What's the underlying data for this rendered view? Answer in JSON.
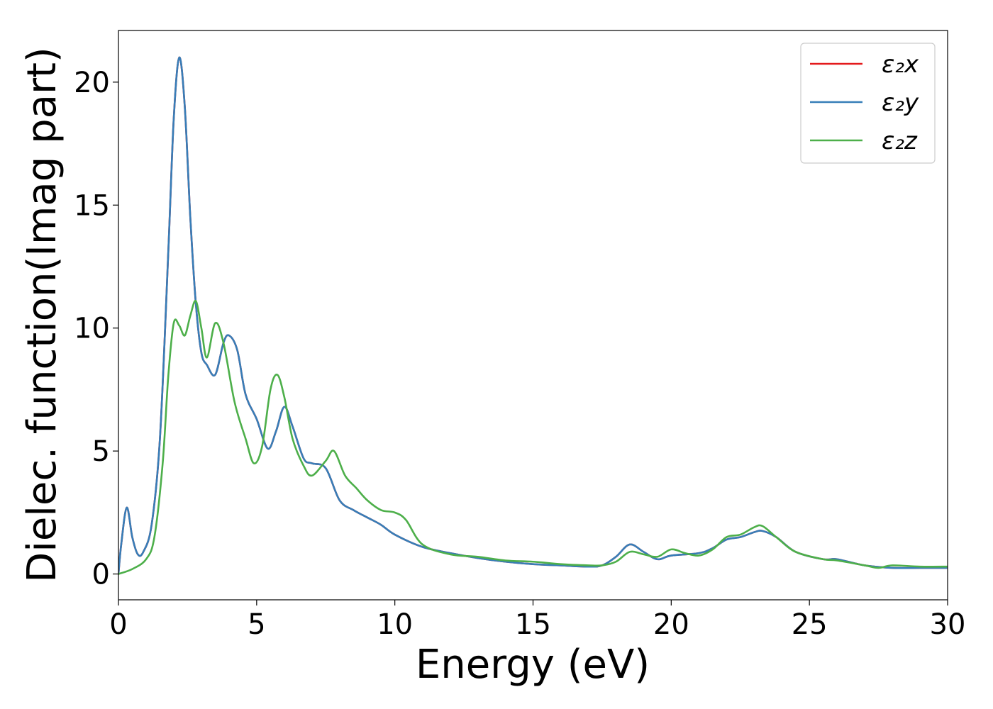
{
  "chart_data": {
    "type": "line",
    "title": "",
    "xlabel": "Energy (eV)",
    "ylabel": "Dielec. function(Imag part)",
    "xlim": [
      0,
      30
    ],
    "ylim": [
      -1.05,
      22.1
    ],
    "xticks": [
      0,
      5,
      10,
      15,
      20,
      25,
      30
    ],
    "yticks": [
      0,
      5,
      10,
      15,
      20
    ],
    "grid": false,
    "legend_position": "top-right",
    "series": [
      {
        "name": "ε₂x",
        "color": "#e41a1c",
        "x": [
          0,
          0.1,
          0.3,
          0.5,
          0.7,
          0.9,
          1.2,
          1.5,
          1.8,
          2.0,
          2.2,
          2.4,
          2.6,
          2.8,
          3.0,
          3.2,
          3.5,
          3.8,
          4.0,
          4.3,
          4.6,
          5.0,
          5.4,
          5.7,
          6.0,
          6.3,
          6.7,
          7.0,
          7.5,
          8.0,
          8.5,
          9.0,
          9.5,
          10.0,
          11.0,
          12.0,
          13.0,
          14.0,
          15.0,
          16.0,
          17.0,
          17.5,
          18.0,
          18.5,
          19.0,
          19.5,
          20.0,
          21.0,
          21.5,
          22.0,
          22.5,
          23.0,
          23.3,
          23.8,
          24.5,
          25.5,
          26.0,
          27.0,
          28.0,
          29.0,
          30.0
        ],
        "values": [
          0,
          1.2,
          2.7,
          1.5,
          0.8,
          0.9,
          2.0,
          5.5,
          13.0,
          18.5,
          21.0,
          19.0,
          14.5,
          11.0,
          9.0,
          8.5,
          8.1,
          9.4,
          9.7,
          9.1,
          7.3,
          6.3,
          5.1,
          5.8,
          6.8,
          6.0,
          4.7,
          4.5,
          4.3,
          3.0,
          2.6,
          2.3,
          2.0,
          1.6,
          1.1,
          0.85,
          0.65,
          0.5,
          0.4,
          0.35,
          0.3,
          0.35,
          0.7,
          1.2,
          0.9,
          0.6,
          0.75,
          0.85,
          1.05,
          1.4,
          1.5,
          1.7,
          1.75,
          1.5,
          0.9,
          0.6,
          0.6,
          0.35,
          0.25,
          0.25,
          0.25
        ]
      },
      {
        "name": "ε₂y",
        "color": "#377eb8",
        "x": [
          0,
          0.1,
          0.3,
          0.5,
          0.7,
          0.9,
          1.2,
          1.5,
          1.8,
          2.0,
          2.2,
          2.4,
          2.6,
          2.8,
          3.0,
          3.2,
          3.5,
          3.8,
          4.0,
          4.3,
          4.6,
          5.0,
          5.4,
          5.7,
          6.0,
          6.3,
          6.7,
          7.0,
          7.5,
          8.0,
          8.5,
          9.0,
          9.5,
          10.0,
          11.0,
          12.0,
          13.0,
          14.0,
          15.0,
          16.0,
          17.0,
          17.5,
          18.0,
          18.5,
          19.0,
          19.5,
          20.0,
          21.0,
          21.5,
          22.0,
          22.5,
          23.0,
          23.3,
          23.8,
          24.5,
          25.5,
          26.0,
          27.0,
          28.0,
          29.0,
          30.0
        ],
        "values": [
          0,
          1.2,
          2.7,
          1.5,
          0.8,
          0.9,
          2.0,
          5.5,
          13.0,
          18.5,
          21.0,
          19.0,
          14.5,
          11.0,
          9.0,
          8.5,
          8.1,
          9.4,
          9.7,
          9.1,
          7.3,
          6.3,
          5.1,
          5.8,
          6.8,
          6.0,
          4.7,
          4.5,
          4.3,
          3.0,
          2.6,
          2.3,
          2.0,
          1.6,
          1.1,
          0.85,
          0.65,
          0.5,
          0.4,
          0.35,
          0.3,
          0.35,
          0.7,
          1.2,
          0.9,
          0.6,
          0.75,
          0.85,
          1.05,
          1.4,
          1.5,
          1.7,
          1.75,
          1.5,
          0.9,
          0.6,
          0.6,
          0.35,
          0.25,
          0.25,
          0.25
        ]
      },
      {
        "name": "ε₂z",
        "color": "#4daf4a",
        "x": [
          0,
          0.5,
          1.0,
          1.3,
          1.6,
          1.8,
          2.0,
          2.2,
          2.4,
          2.6,
          2.8,
          3.0,
          3.2,
          3.5,
          3.8,
          4.2,
          4.6,
          4.9,
          5.2,
          5.5,
          5.75,
          6.0,
          6.3,
          6.7,
          7.0,
          7.5,
          7.8,
          8.2,
          8.6,
          9.0,
          9.5,
          10.0,
          10.4,
          11.0,
          12.0,
          13.0,
          14.0,
          15.0,
          16.0,
          17.0,
          17.5,
          18.0,
          18.5,
          19.0,
          19.5,
          20.0,
          20.5,
          21.0,
          21.5,
          22.0,
          22.5,
          23.0,
          23.3,
          23.8,
          24.5,
          25.5,
          26.0,
          27.0,
          27.5,
          28.0,
          29.0,
          30.0
        ],
        "values": [
          0,
          0.2,
          0.6,
          1.5,
          4.5,
          8.0,
          10.2,
          10.1,
          9.7,
          10.5,
          11.1,
          10.0,
          8.8,
          10.2,
          9.4,
          7.0,
          5.5,
          4.5,
          5.2,
          7.5,
          8.1,
          7.2,
          5.5,
          4.4,
          4.0,
          4.6,
          5.0,
          4.0,
          3.5,
          3.0,
          2.6,
          2.5,
          2.2,
          1.2,
          0.8,
          0.7,
          0.55,
          0.5,
          0.4,
          0.35,
          0.35,
          0.5,
          0.9,
          0.8,
          0.7,
          1.0,
          0.85,
          0.75,
          1.0,
          1.5,
          1.6,
          1.9,
          1.95,
          1.5,
          0.9,
          0.6,
          0.55,
          0.35,
          0.25,
          0.35,
          0.3,
          0.3
        ]
      }
    ]
  }
}
